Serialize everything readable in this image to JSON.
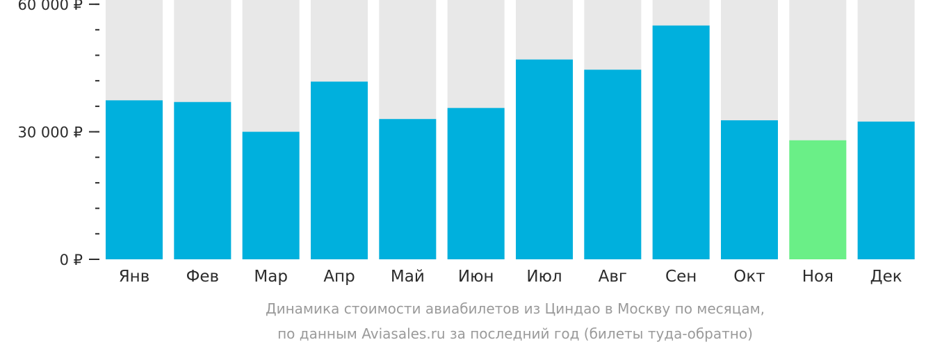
{
  "chart_data": {
    "type": "bar",
    "categories": [
      "Янв",
      "Фев",
      "Мар",
      "Апр",
      "Май",
      "Июн",
      "Июл",
      "Авг",
      "Сен",
      "Окт",
      "Ноя",
      "Дек"
    ],
    "values": [
      37400,
      37000,
      30000,
      41800,
      33000,
      35600,
      47000,
      44600,
      55000,
      32700,
      28000,
      32400
    ],
    "ylim": [
      0,
      61000
    ],
    "y_ticks": [
      {
        "value": 0,
        "label": "0 ₽"
      },
      {
        "value": 30000,
        "label": "30 000 ₽"
      },
      {
        "value": 60000,
        "label": "60 000 ₽"
      }
    ],
    "minor_tick_step": 6000,
    "highlight_index": 10,
    "colors": {
      "bar": "#00b0dd",
      "highlight": "#6aef87",
      "background_column": "#e8e8e8",
      "axis": "#2b2b2b"
    }
  },
  "caption": {
    "line1": "Динамика стоимости авиабилетов из Циндао в Москву по месяцам,",
    "line2": "по данным Aviasales.ru за последний год (билеты туда-обратно)"
  }
}
